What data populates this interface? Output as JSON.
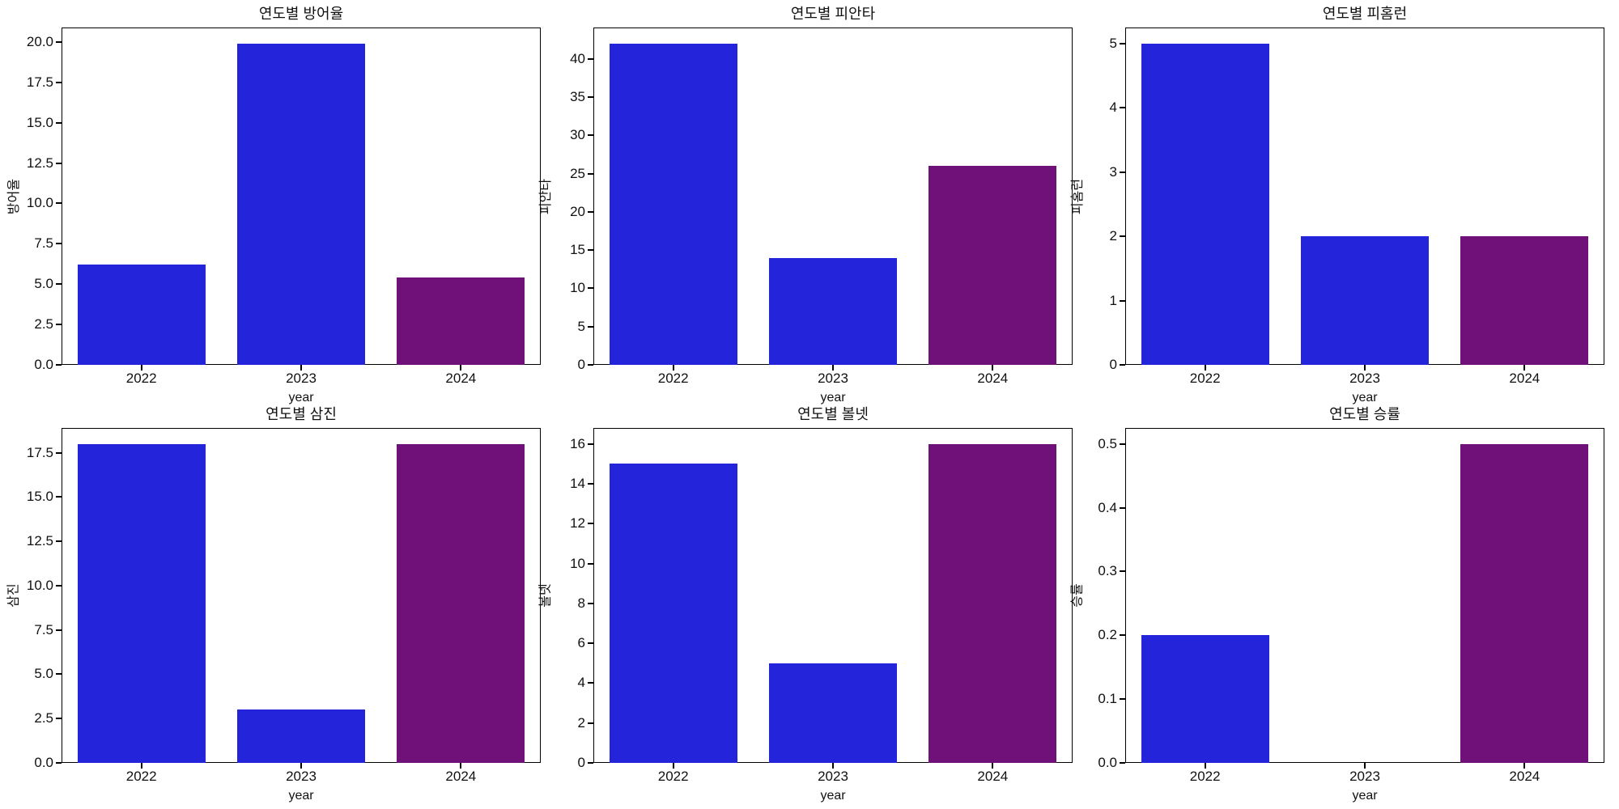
{
  "figure": {
    "background_color": "#ffffff",
    "axis_color": "#000000",
    "text_color": "#111111"
  },
  "chart_data": [
    {
      "type": "bar",
      "title": "연도별 방어율",
      "xlabel": "year",
      "ylabel": "방어율",
      "categories": [
        "2022",
        "2023",
        "2024"
      ],
      "values": [
        6.2,
        19.9,
        5.4
      ],
      "bar_colors": [
        "#2424DB",
        "#2424DB",
        "#6F1179"
      ],
      "ylim": [
        0,
        20.9
      ],
      "ytick_values": [
        0,
        2.5,
        5,
        7.5,
        10,
        12.5,
        15,
        17.5,
        20
      ],
      "ytick_labels": [
        "0.0",
        "2.5",
        "5.0",
        "7.5",
        "10.0",
        "12.5",
        "15.0",
        "17.5",
        "20.0"
      ],
      "grid": false,
      "legend": null
    },
    {
      "type": "bar",
      "title": "연도별 피안타",
      "xlabel": "year",
      "ylabel": "피안타",
      "categories": [
        "2022",
        "2023",
        "2024"
      ],
      "values": [
        42,
        14,
        26
      ],
      "bar_colors": [
        "#2424DB",
        "#2424DB",
        "#6F1179"
      ],
      "ylim": [
        0,
        44.1
      ],
      "ytick_values": [
        0,
        5,
        10,
        15,
        20,
        25,
        30,
        35,
        40
      ],
      "ytick_labels": [
        "0",
        "5",
        "10",
        "15",
        "20",
        "25",
        "30",
        "35",
        "40"
      ],
      "grid": false,
      "legend": null
    },
    {
      "type": "bar",
      "title": "연도별 피홈런",
      "xlabel": "year",
      "ylabel": "피홈런",
      "categories": [
        "2022",
        "2023",
        "2024"
      ],
      "values": [
        5,
        2,
        2
      ],
      "bar_colors": [
        "#2424DB",
        "#2424DB",
        "#6F1179"
      ],
      "ylim": [
        0,
        5.25
      ],
      "ytick_values": [
        0,
        1,
        2,
        3,
        4,
        5
      ],
      "ytick_labels": [
        "0",
        "1",
        "2",
        "3",
        "4",
        "5"
      ],
      "grid": false,
      "legend": null
    },
    {
      "type": "bar",
      "title": "연도별 삼진",
      "xlabel": "year",
      "ylabel": "삼진",
      "categories": [
        "2022",
        "2023",
        "2024"
      ],
      "values": [
        18,
        3,
        18
      ],
      "bar_colors": [
        "#2424DB",
        "#2424DB",
        "#6F1179"
      ],
      "ylim": [
        0,
        18.9
      ],
      "ytick_values": [
        0,
        2.5,
        5,
        7.5,
        10,
        12.5,
        15,
        17.5
      ],
      "ytick_labels": [
        "0.0",
        "2.5",
        "5.0",
        "7.5",
        "10.0",
        "12.5",
        "15.0",
        "17.5"
      ],
      "grid": false,
      "legend": null
    },
    {
      "type": "bar",
      "title": "연도별 볼넷",
      "xlabel": "year",
      "ylabel": "볼넷",
      "categories": [
        "2022",
        "2023",
        "2024"
      ],
      "values": [
        15,
        5,
        16
      ],
      "bar_colors": [
        "#2424DB",
        "#2424DB",
        "#6F1179"
      ],
      "ylim": [
        0,
        16.8
      ],
      "ytick_values": [
        0,
        2,
        4,
        6,
        8,
        10,
        12,
        14,
        16
      ],
      "ytick_labels": [
        "0",
        "2",
        "4",
        "6",
        "8",
        "10",
        "12",
        "14",
        "16"
      ],
      "grid": false,
      "legend": null
    },
    {
      "type": "bar",
      "title": "연도별 승률",
      "xlabel": "year",
      "ylabel": "승률",
      "categories": [
        "2022",
        "2023",
        "2024"
      ],
      "values": [
        0.2,
        0,
        0.5
      ],
      "bar_colors": [
        "#2424DB",
        "#2424DB",
        "#6F1179"
      ],
      "ylim": [
        0,
        0.525
      ],
      "ytick_values": [
        0,
        0.1,
        0.2,
        0.3,
        0.4,
        0.5
      ],
      "ytick_labels": [
        "0.0",
        "0.1",
        "0.2",
        "0.3",
        "0.4",
        "0.5"
      ],
      "grid": false,
      "legend": null
    }
  ]
}
